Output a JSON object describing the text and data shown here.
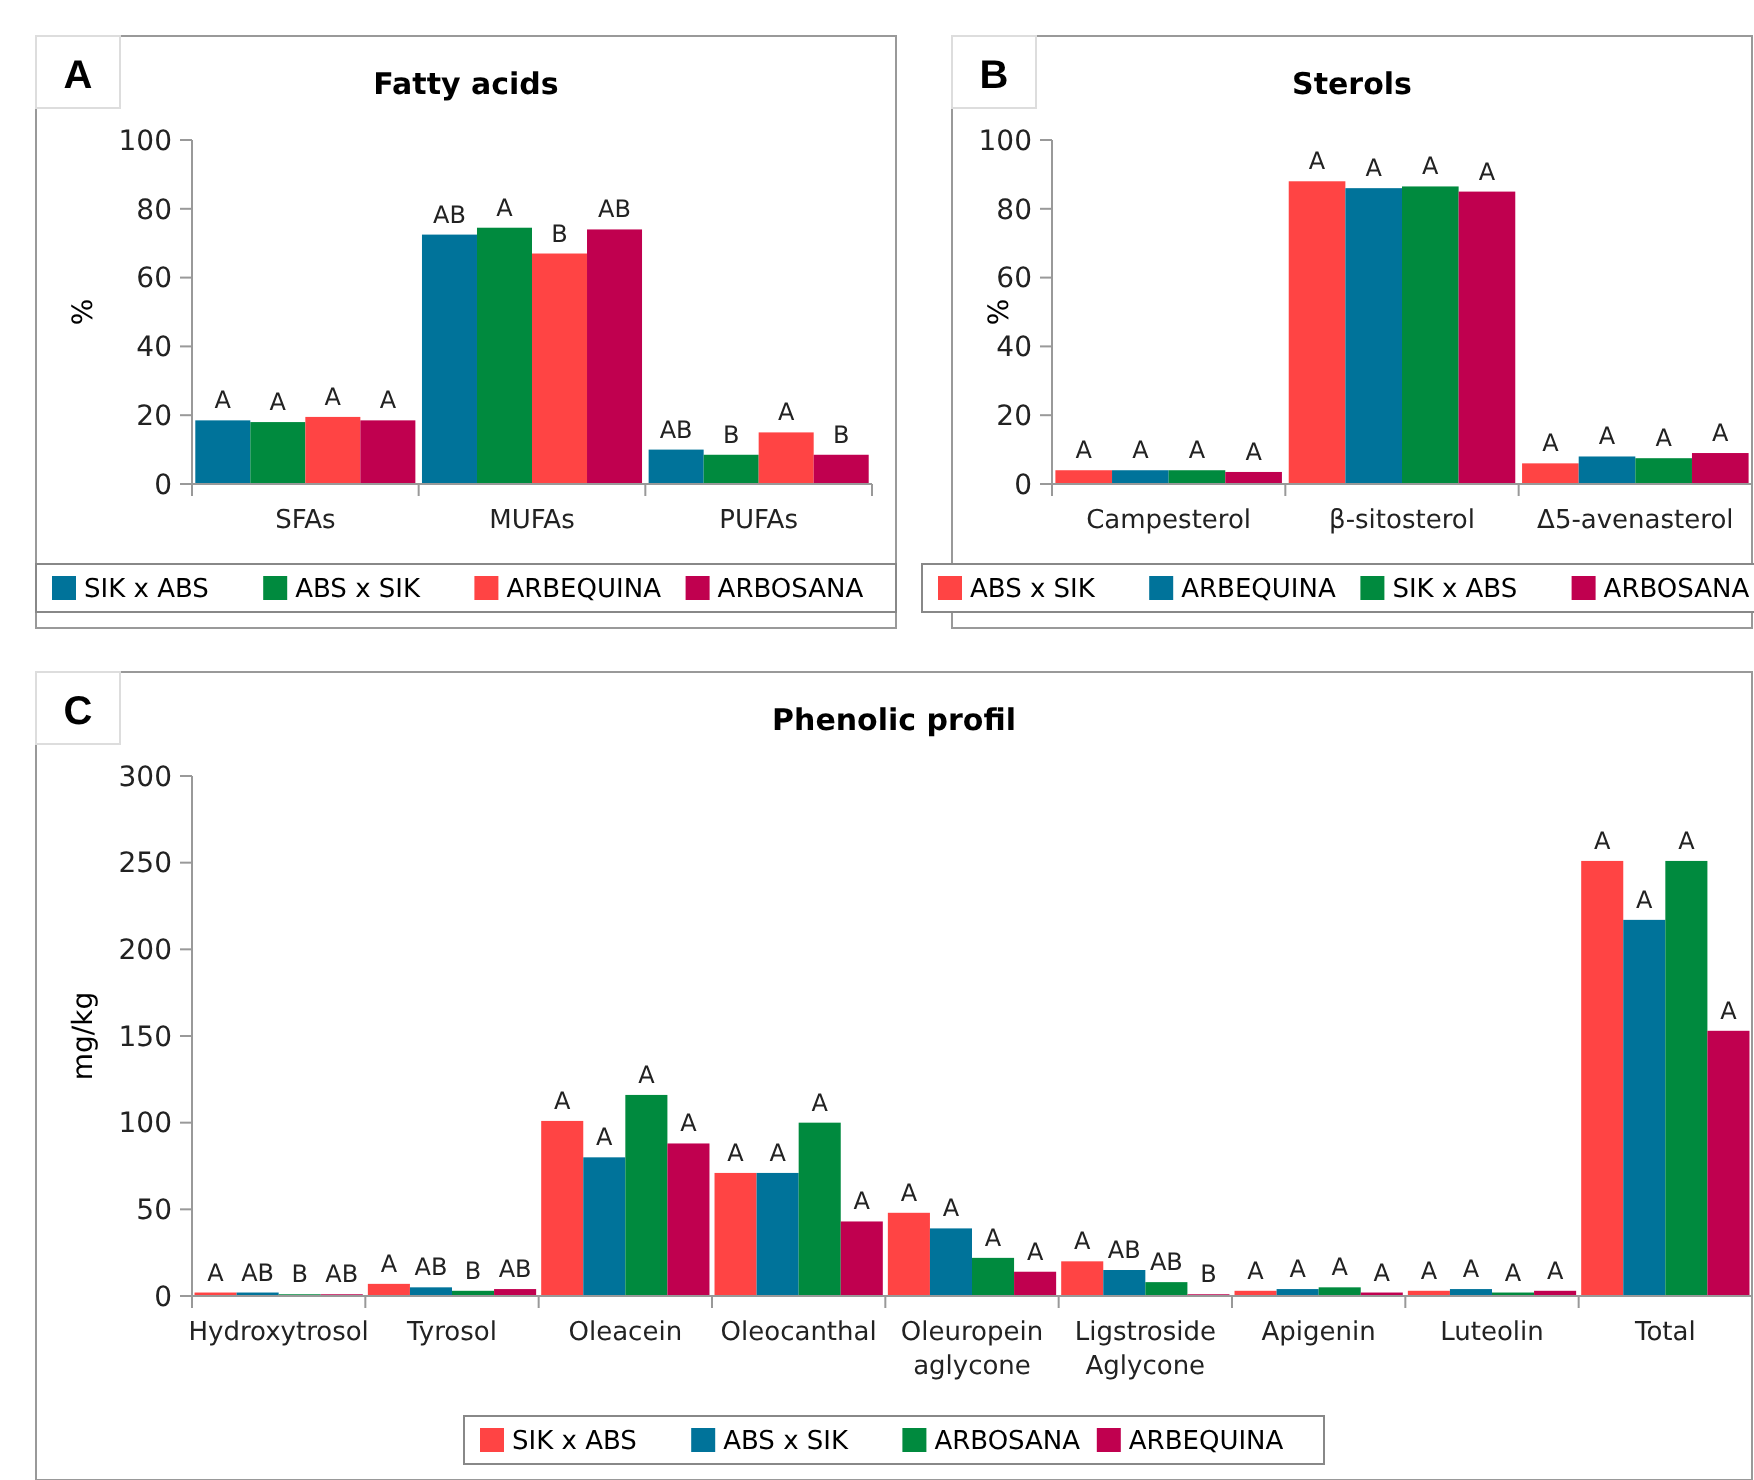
{
  "chart_data": [
    {
      "type": "bar",
      "title": "Fatty acids",
      "annotations": [
        "A"
      ],
      "ylabel": "%",
      "categories": [
        "SFAs",
        "MUFAs",
        "PUFAs"
      ],
      "ylim": [
        0,
        100
      ],
      "yticks": [
        0,
        20,
        40,
        60,
        80,
        100
      ],
      "grid": false,
      "legend": "bottom",
      "series": [
        {
          "name": "SIK x ABS",
          "color": "#00739a",
          "values": [
            18.5,
            72.5,
            10
          ],
          "value_labels": [
            "A",
            "AB",
            "AB"
          ]
        },
        {
          "name": "ABS x SIK",
          "color": "#008a3e",
          "values": [
            18,
            74.5,
            8.5
          ],
          "value_labels": [
            "A",
            "A",
            "B"
          ]
        },
        {
          "name": "ARBEQUINA",
          "color": "#ff4444",
          "values": [
            19.5,
            67,
            15
          ],
          "value_labels": [
            "A",
            "B",
            "A"
          ]
        },
        {
          "name": "ARBOSANA",
          "color": "#c0004f",
          "values": [
            18.5,
            74,
            8.5
          ],
          "value_labels": [
            "A",
            "AB",
            "B"
          ]
        }
      ]
    },
    {
      "type": "bar",
      "title": "Sterols",
      "annotations": [
        "B"
      ],
      "ylabel": "%",
      "categories": [
        "Campesterol",
        "β-sitosterol",
        "Δ5-avenasterol"
      ],
      "ylim": [
        0,
        100
      ],
      "yticks": [
        0,
        20,
        40,
        60,
        80,
        100
      ],
      "grid": false,
      "legend": "bottom",
      "series": [
        {
          "name": "ABS x SIK",
          "color": "#ff4444",
          "values": [
            4,
            88,
            6
          ],
          "value_labels": [
            "A",
            "A",
            "A"
          ]
        },
        {
          "name": "ARBEQUINA",
          "color": "#00739a",
          "values": [
            4,
            86,
            8
          ],
          "value_labels": [
            "A",
            "A",
            "A"
          ]
        },
        {
          "name": "SIK x ABS",
          "color": "#008a3e",
          "values": [
            4,
            86.5,
            7.5
          ],
          "value_labels": [
            "A",
            "A",
            "A"
          ]
        },
        {
          "name": "ARBOSANA",
          "color": "#c0004f",
          "values": [
            3.5,
            85,
            9
          ],
          "value_labels": [
            "A",
            "A",
            "A"
          ]
        }
      ]
    },
    {
      "type": "bar",
      "title": "Phenolic profil",
      "annotations": [
        "C"
      ],
      "ylabel": "mg/kg",
      "categories": [
        "Hydroxytrosol",
        "Tyrosol",
        "Oleacein",
        "Oleocanthal",
        "Oleuropein aglycone",
        "Ligstroside Aglycone",
        "Apigenin",
        "Luteolin",
        "Total"
      ],
      "ylim": [
        0,
        300
      ],
      "yticks": [
        0,
        50,
        100,
        150,
        200,
        250,
        300
      ],
      "grid": false,
      "legend": "bottom",
      "series": [
        {
          "name": "SIK x ABS",
          "color": "#ff4444",
          "values": [
            2,
            7,
            101,
            71,
            48,
            20,
            3,
            3,
            251
          ],
          "value_labels": [
            "A",
            "A",
            "A",
            "A",
            "A",
            "A",
            "A",
            "A",
            "A"
          ]
        },
        {
          "name": "ABS x SIK",
          "color": "#00739a",
          "values": [
            2,
            5,
            80,
            71,
            39,
            15,
            4,
            4,
            217
          ],
          "value_labels": [
            "AB",
            "AB",
            "A",
            "A",
            "A",
            "AB",
            "A",
            "A",
            "A"
          ]
        },
        {
          "name": "ARBOSANA",
          "color": "#008a3e",
          "values": [
            1,
            3,
            116,
            100,
            22,
            8,
            5,
            2,
            251
          ],
          "value_labels": [
            "B",
            "B",
            "A",
            "A",
            "A",
            "AB",
            "A",
            "A",
            "A"
          ]
        },
        {
          "name": "ARBEQUINA",
          "color": "#c0004f",
          "values": [
            1,
            4,
            88,
            43,
            14,
            1,
            2,
            3,
            153
          ],
          "value_labels": [
            "AB",
            "AB",
            "A",
            "A",
            "A",
            "B",
            "A",
            "A",
            "A"
          ]
        }
      ]
    }
  ]
}
